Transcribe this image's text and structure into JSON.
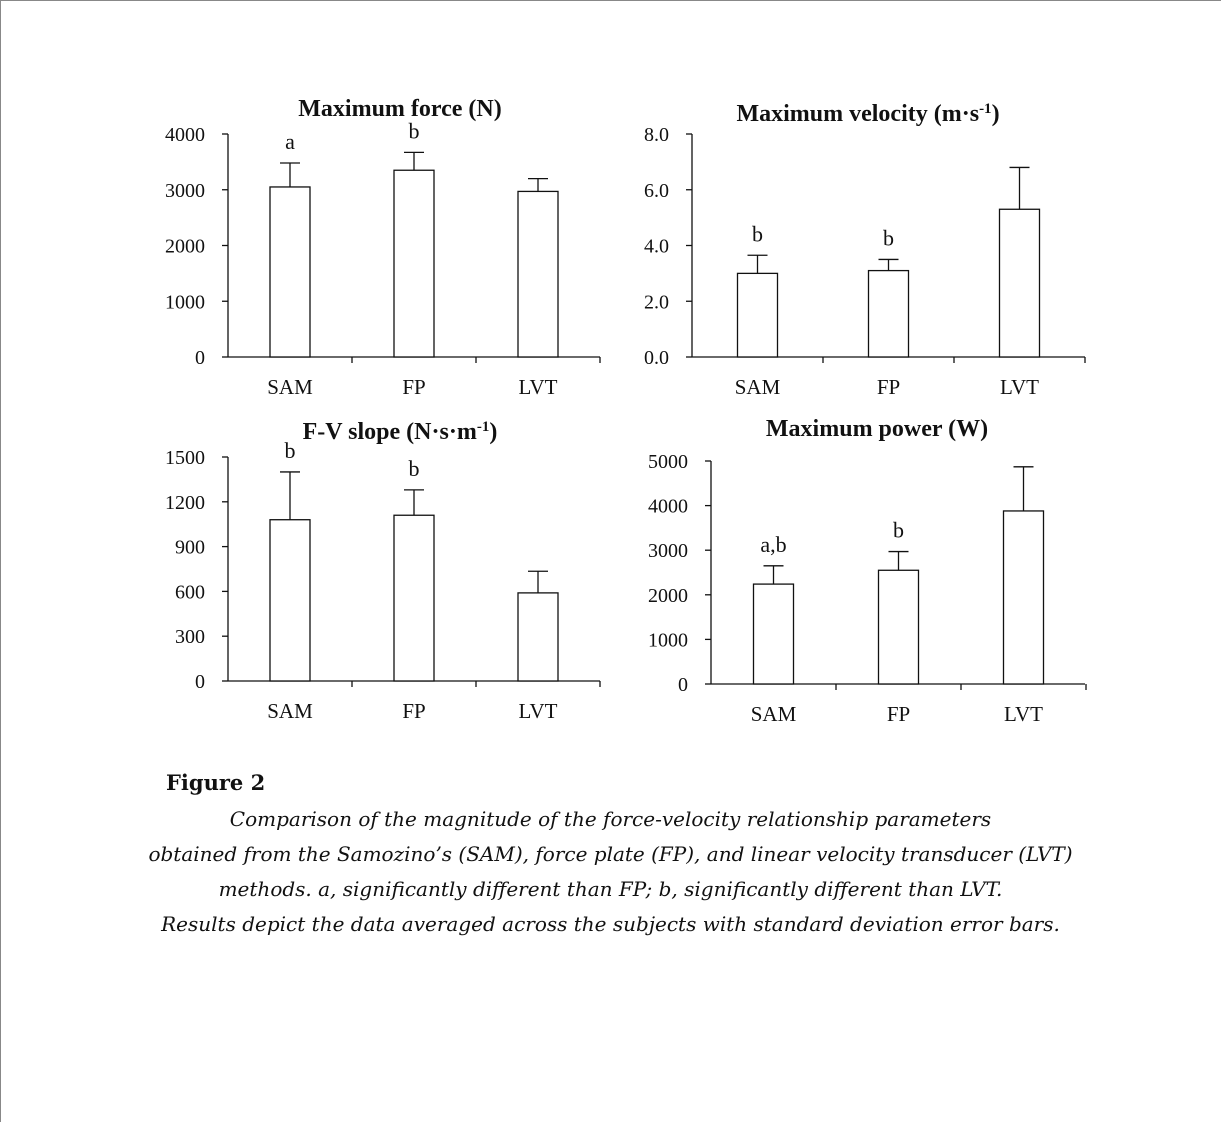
{
  "chart_data": [
    {
      "type": "bar",
      "title": "Maximum force (N)",
      "categories": [
        "SAM",
        "FP",
        "LVT"
      ],
      "values": [
        3050,
        3350,
        2970
      ],
      "error": [
        430,
        320,
        230
      ],
      "annotations": [
        "a",
        "b",
        ""
      ],
      "ylim": [
        0,
        4000
      ],
      "yticks": [
        "0",
        "1000",
        "2000",
        "3000",
        "4000"
      ],
      "xlabel": "",
      "ylabel": ""
    },
    {
      "type": "bar",
      "title": "Maximum velocity (m·s⁻¹)",
      "categories": [
        "SAM",
        "FP",
        "LVT"
      ],
      "values": [
        3.0,
        3.1,
        5.3
      ],
      "error": [
        0.65,
        0.4,
        1.5
      ],
      "annotations": [
        "b",
        "b",
        ""
      ],
      "ylim": [
        0,
        8
      ],
      "yticks": [
        "0.0",
        "2.0",
        "4.0",
        "6.0",
        "8.0"
      ],
      "xlabel": "",
      "ylabel": ""
    },
    {
      "type": "bar",
      "title": "F-V slope (N·s·m⁻¹)",
      "categories": [
        "SAM",
        "FP",
        "LVT"
      ],
      "values": [
        1080,
        1110,
        590
      ],
      "error": [
        320,
        170,
        145
      ],
      "annotations": [
        "b",
        "b",
        ""
      ],
      "ylim": [
        0,
        1500
      ],
      "yticks": [
        "0",
        "300",
        "600",
        "900",
        "1200",
        "1500"
      ],
      "xlabel": "",
      "ylabel": ""
    },
    {
      "type": "bar",
      "title": "Maximum power (W)",
      "categories": [
        "SAM",
        "FP",
        "LVT"
      ],
      "values": [
        2240,
        2550,
        3880
      ],
      "error": [
        410,
        420,
        990
      ],
      "annotations": [
        "a,b",
        "b",
        ""
      ],
      "ylim": [
        0,
        5000
      ],
      "yticks": [
        "0",
        "1000",
        "2000",
        "3000",
        "4000",
        "5000"
      ],
      "xlabel": "",
      "ylabel": ""
    }
  ],
  "caption": {
    "label": "Figure 2",
    "lines": [
      "Comparison of the magnitude of the force-velocity relationship parameters",
      "obtained from the Samozino’s (SAM), force plate (FP), and linear velocity transducer (LVT)",
      "methods. a, significantly different than FP; b, significantly different than LVT.",
      "Results depict the data averaged across the subjects with standard deviation error bars."
    ]
  }
}
